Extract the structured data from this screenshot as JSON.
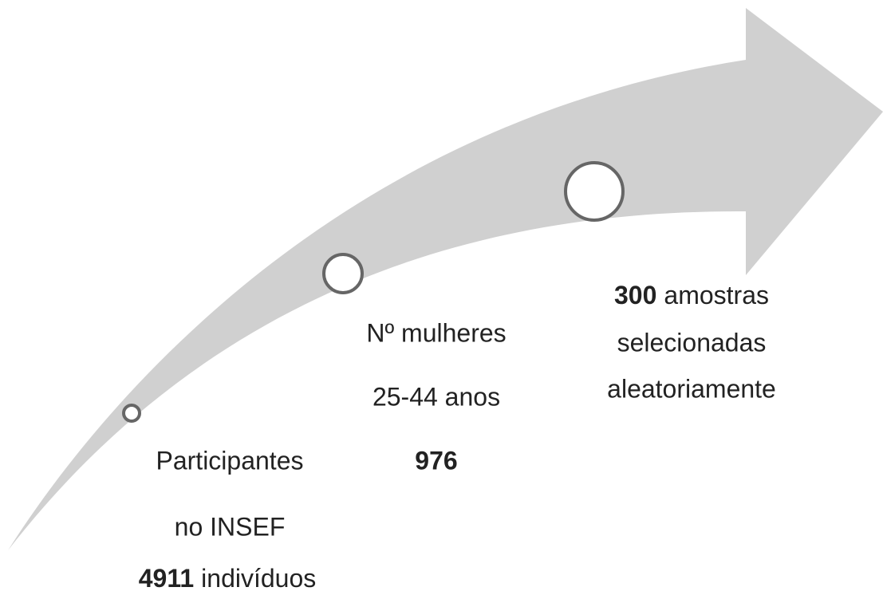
{
  "steps": [
    {
      "lines": [
        "Participantes",
        "no INSEF"
      ],
      "count": "4911",
      "count_text": "indivíduos"
    },
    {
      "lines": [
        "Nº mulheres",
        "25-44 anos"
      ],
      "count": "976"
    },
    {
      "count": "300",
      "count_text": "amostras",
      "lines": [
        "selecionadas",
        "aleatoriamente"
      ]
    }
  ]
}
